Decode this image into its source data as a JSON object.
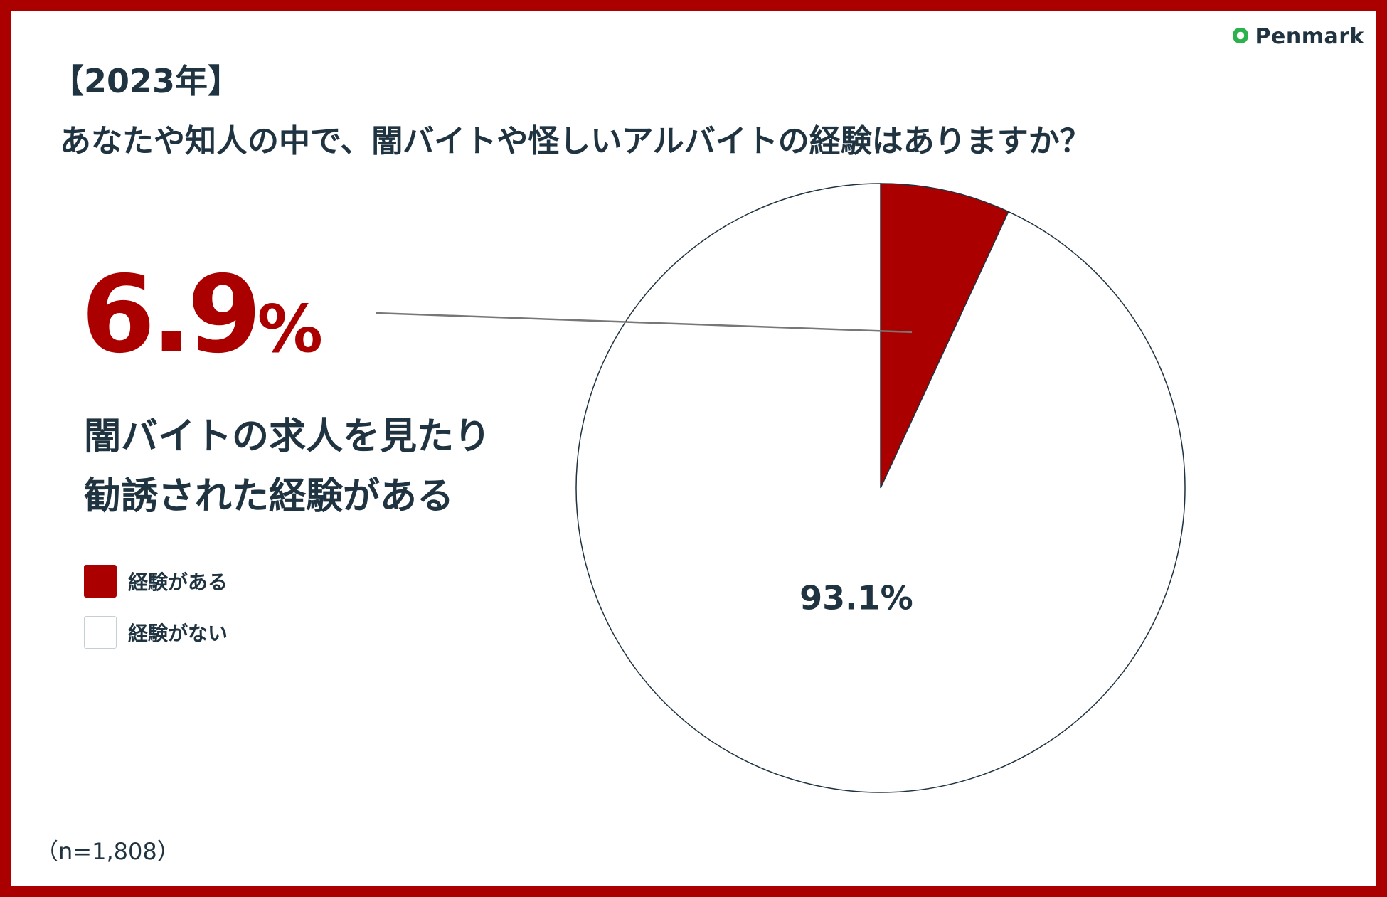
{
  "brand": {
    "name": "Penmark",
    "icon": "penmark-logo-icon",
    "color": "#2bb24c"
  },
  "header": {
    "year": "【2023年】",
    "question": "あなたや知人の中で、闇バイトや怪しいアルバイトの経験はありますか？"
  },
  "highlight": {
    "percent_number": "6.9",
    "percent_sign": "%",
    "desc_line1": "闇バイトの求人を見たり",
    "desc_line2": "勧誘された経験がある"
  },
  "footnote": "（n=1,808）",
  "colors": {
    "accent": "#ab0000",
    "text": "#1f3340",
    "frame": "#ab0000"
  },
  "chart_data": {
    "type": "pie",
    "start_angle_deg": 0,
    "direction": "clockwise",
    "legend_position": "left",
    "slices": [
      {
        "label": "経験がある",
        "value": 6.9,
        "display": "",
        "color": "#ab0000"
      },
      {
        "label": "経験がない",
        "value": 93.1,
        "display": "93.1%",
        "color": "#ffffff"
      }
    ]
  }
}
